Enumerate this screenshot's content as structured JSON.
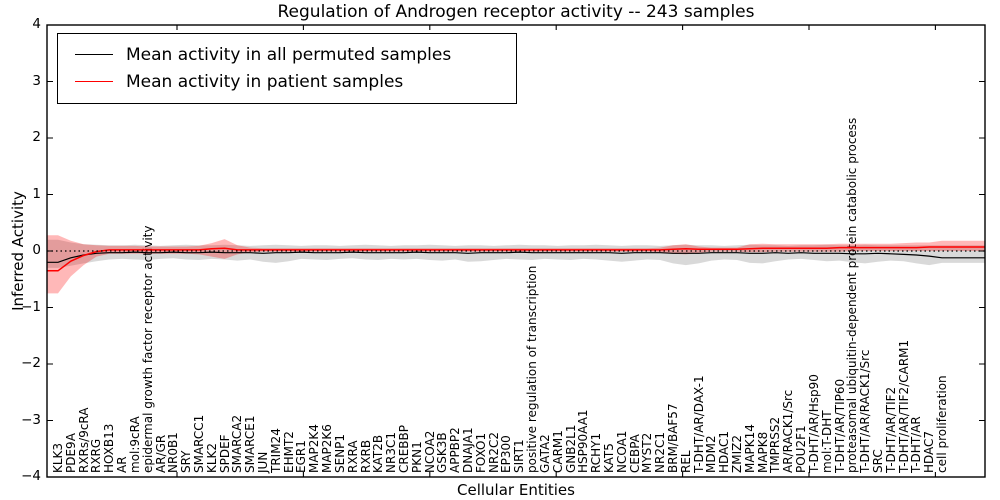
{
  "chart_data": {
    "type": "line",
    "title": "Regulation of Androgen receptor activity -- 243 samples",
    "xlabel": "Cellular Entities",
    "ylabel": "Inferred Activity",
    "ylim": [
      -4,
      4
    ],
    "ytick_values": [
      4,
      3,
      2,
      1,
      0,
      -1,
      -2,
      -3,
      -4
    ],
    "ytick_labels": [
      "4",
      "3",
      "2",
      "1",
      "0",
      "−1",
      "−2",
      "−3",
      "−4"
    ],
    "grid": false,
    "legend_position": "upper left",
    "zero_line": true,
    "categories": [
      "KLK3",
      "PDE9A",
      "RXRs/9cRA",
      "RXRG",
      "HOXB13",
      "AR",
      "mol:9cRA",
      "epidermal growth factor receptor activity",
      "AR/GR",
      "NR0B1",
      "SRY",
      "SMARCC1",
      "KLK2",
      "SPDEF",
      "SMARCA2",
      "SMARCE1",
      "JUN",
      "TRIM24",
      "EHMT2",
      "EGR1",
      "MAP2K4",
      "MAP2K6",
      "SENP1",
      "RXRA",
      "RXRB",
      "KAT2B",
      "NR3C1",
      "CREBBP",
      "PKN1",
      "NCOA2",
      "GSK3B",
      "APPBP2",
      "DNAJA1",
      "FOXO1",
      "NR2C2",
      "EP300",
      "SIRT1",
      "positive regulation of transcription",
      "GATA2",
      "CARM1",
      "GNB2L1",
      "HSP90AA1",
      "RCHY1",
      "KAT5",
      "NCOA1",
      "CEBPA",
      "MYST2",
      "NR2C1",
      "BRM/BAF57",
      "REL",
      "T-DHT/AR/DAX-1",
      "MDM2",
      "HDAC1",
      "ZMIZ2",
      "MAPK14",
      "MAPK8",
      "TMPRSS2",
      "AR/RACK1/Src",
      "POU2F1",
      "T-DHT/AR/Hsp90",
      "mol:T-DHT",
      "T-DHT/AR/TIP60",
      "proteasomal ubiquitin-dependent protein catabolic process",
      "T-DHT/AR/RACK1/Src",
      "SRC",
      "T-DHT/AR/TIF2",
      "T-DHT/AR/TIF2/CARM1",
      "T-DHT/AR",
      "HDAC7",
      "cell proliferation"
    ],
    "series": [
      {
        "name": "Mean activity in all permuted samples",
        "color": "#000000",
        "band_color": "rgba(0,0,0,0.15)",
        "values": [
          -0.2,
          -0.12,
          -0.07,
          -0.04,
          -0.03,
          -0.03,
          -0.02,
          -0.03,
          -0.03,
          -0.02,
          -0.03,
          -0.03,
          -0.02,
          -0.03,
          -0.03,
          -0.03,
          -0.04,
          -0.03,
          -0.03,
          -0.02,
          -0.03,
          -0.03,
          -0.03,
          -0.02,
          -0.03,
          -0.03,
          -0.03,
          -0.03,
          -0.02,
          -0.03,
          -0.03,
          -0.03,
          -0.04,
          -0.03,
          -0.03,
          -0.03,
          -0.02,
          -0.03,
          -0.03,
          -0.03,
          -0.03,
          -0.03,
          -0.03,
          -0.03,
          -0.04,
          -0.03,
          -0.03,
          -0.03,
          -0.04,
          -0.04,
          -0.04,
          -0.03,
          -0.03,
          -0.03,
          -0.04,
          -0.04,
          -0.03,
          -0.04,
          -0.03,
          -0.04,
          -0.04,
          -0.04,
          -0.05,
          -0.05,
          -0.04,
          -0.05,
          -0.06,
          -0.07,
          -0.09,
          -0.12
        ],
        "band_upper": [
          0.2,
          0.15,
          0.12,
          0.11,
          0.1,
          0.1,
          0.11,
          0.1,
          0.09,
          0.1,
          0.11,
          0.1,
          0.1,
          0.11,
          0.1,
          0.09,
          0.1,
          0.11,
          0.1,
          0.09,
          0.1,
          0.1,
          0.09,
          0.1,
          0.11,
          0.1,
          0.09,
          0.1,
          0.1,
          0.11,
          0.1,
          0.09,
          0.1,
          0.1,
          0.09,
          0.1,
          0.11,
          0.1,
          0.1,
          0.09,
          0.1,
          0.1,
          0.11,
          0.1,
          0.09,
          0.1,
          0.1,
          0.09,
          0.1,
          0.11,
          0.1,
          0.1,
          0.09,
          0.1,
          0.11,
          0.1,
          0.1,
          0.09,
          0.1,
          0.1,
          0.11,
          0.1,
          0.1,
          0.11,
          0.1,
          0.1,
          0.1,
          0.1,
          0.1,
          0.1
        ],
        "band_lower": [
          -0.3,
          -0.26,
          -0.22,
          -0.18,
          -0.15,
          -0.14,
          -0.15,
          -0.16,
          -0.14,
          -0.13,
          -0.15,
          -0.16,
          -0.14,
          -0.15,
          -0.17,
          -0.15,
          -0.19,
          -0.21,
          -0.18,
          -0.14,
          -0.15,
          -0.16,
          -0.14,
          -0.13,
          -0.15,
          -0.16,
          -0.14,
          -0.15,
          -0.14,
          -0.16,
          -0.17,
          -0.15,
          -0.19,
          -0.18,
          -0.16,
          -0.14,
          -0.15,
          -0.16,
          -0.14,
          -0.15,
          -0.16,
          -0.14,
          -0.15,
          -0.17,
          -0.19,
          -0.17,
          -0.15,
          -0.16,
          -0.22,
          -0.25,
          -0.22,
          -0.17,
          -0.15,
          -0.16,
          -0.21,
          -0.22,
          -0.18,
          -0.15,
          -0.14,
          -0.16,
          -0.18,
          -0.17,
          -0.2,
          -0.22,
          -0.19,
          -0.17,
          -0.18,
          -0.22,
          -0.25,
          -0.21
        ]
      },
      {
        "name": "Mean activity in patient samples",
        "color": "#ff0000",
        "band_color": "rgba(255,0,0,0.28)",
        "values": [
          -0.35,
          -0.18,
          -0.08,
          -0.01,
          0.02,
          0.02,
          0.02,
          0.02,
          0.02,
          0.02,
          0.02,
          0.02,
          0.04,
          0.05,
          0.02,
          0.02,
          0.02,
          0.02,
          0.02,
          0.02,
          0.02,
          0.02,
          0.02,
          0.02,
          0.02,
          0.02,
          0.02,
          0.02,
          0.02,
          0.02,
          0.02,
          0.02,
          0.02,
          0.02,
          0.02,
          0.02,
          0.02,
          0.02,
          0.02,
          0.02,
          0.02,
          0.02,
          0.02,
          0.02,
          0.02,
          0.02,
          0.02,
          0.02,
          0.03,
          0.04,
          0.03,
          0.03,
          0.03,
          0.03,
          0.04,
          0.05,
          0.05,
          0.05,
          0.05,
          0.05,
          0.05,
          0.06,
          0.06,
          0.06,
          0.06,
          0.06,
          0.06,
          0.06,
          0.07,
          0.07
        ],
        "band_upper": [
          0.28,
          0.18,
          0.12,
          0.1,
          0.09,
          0.09,
          0.09,
          0.08,
          0.08,
          0.08,
          0.08,
          0.09,
          0.14,
          0.21,
          0.1,
          0.06,
          0.05,
          0.05,
          0.05,
          0.05,
          0.05,
          0.05,
          0.05,
          0.05,
          0.05,
          0.05,
          0.05,
          0.05,
          0.05,
          0.05,
          0.05,
          0.05,
          0.05,
          0.05,
          0.05,
          0.05,
          0.05,
          0.05,
          0.05,
          0.05,
          0.05,
          0.05,
          0.05,
          0.05,
          0.05,
          0.05,
          0.05,
          0.06,
          0.1,
          0.12,
          0.08,
          0.06,
          0.06,
          0.06,
          0.12,
          0.13,
          0.12,
          0.12,
          0.12,
          0.12,
          0.12,
          0.13,
          0.13,
          0.13,
          0.13,
          0.13,
          0.14,
          0.15,
          0.15,
          0.18
        ],
        "band_lower": [
          -0.75,
          -0.45,
          -0.25,
          -0.1,
          -0.05,
          -0.05,
          -0.05,
          -0.05,
          -0.05,
          -0.05,
          -0.05,
          -0.06,
          -0.1,
          -0.14,
          -0.06,
          -0.02,
          -0.01,
          -0.01,
          -0.01,
          -0.01,
          -0.01,
          -0.01,
          -0.01,
          -0.01,
          -0.01,
          -0.01,
          -0.01,
          -0.01,
          -0.01,
          -0.01,
          -0.01,
          -0.01,
          -0.01,
          -0.01,
          -0.01,
          -0.01,
          -0.01,
          -0.01,
          -0.01,
          -0.01,
          -0.01,
          -0.01,
          -0.01,
          -0.01,
          -0.01,
          -0.01,
          -0.01,
          -0.02,
          -0.05,
          -0.06,
          -0.03,
          -0.01,
          -0.01,
          -0.01,
          -0.02,
          -0.02,
          -0.01,
          -0.01,
          -0.01,
          -0.01,
          -0.01,
          -0.01,
          0.0,
          0.0,
          0.0,
          0.0,
          0.0,
          0.0,
          0.0,
          0.0
        ]
      }
    ]
  }
}
